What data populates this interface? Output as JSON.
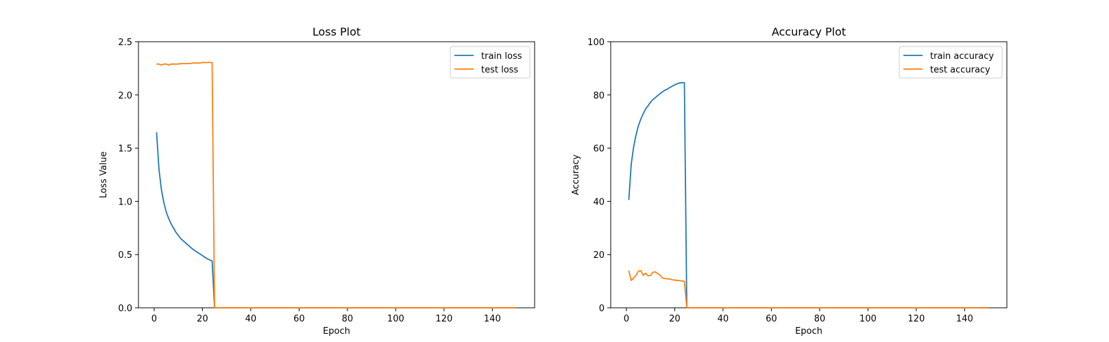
{
  "colors": {
    "series1": "#1f77b4",
    "series2": "#ff7f0e"
  },
  "chart_data": [
    {
      "type": "line",
      "title": "Loss Plot",
      "xlabel": "Epoch",
      "ylabel": "Loss Value",
      "xlim": [
        -6.5,
        157.5
      ],
      "ylim": [
        0,
        2.5
      ],
      "xticks": [
        0,
        20,
        40,
        60,
        80,
        100,
        120,
        140
      ],
      "yticks": [
        0.0,
        0.5,
        1.0,
        1.5,
        2.0,
        2.5
      ],
      "ytick_labels": [
        "0.0",
        "0.5",
        "1.0",
        "1.5",
        "2.0",
        "2.5"
      ],
      "grid": false,
      "legend": "top-right",
      "series": [
        {
          "name": "train loss",
          "points": [
            [
              1,
              1.65
            ],
            [
              2,
              1.3
            ],
            [
              3,
              1.11
            ],
            [
              4,
              0.99
            ],
            [
              5,
              0.9
            ],
            [
              6,
              0.84
            ],
            [
              7,
              0.79
            ],
            [
              8,
              0.75
            ],
            [
              9,
              0.71
            ],
            [
              10,
              0.68
            ],
            [
              11,
              0.65
            ],
            [
              12,
              0.63
            ],
            [
              13,
              0.61
            ],
            [
              14,
              0.59
            ],
            [
              15,
              0.57
            ],
            [
              16,
              0.55
            ],
            [
              17,
              0.535
            ],
            [
              18,
              0.52
            ],
            [
              19,
              0.505
            ],
            [
              20,
              0.49
            ],
            [
              21,
              0.475
            ],
            [
              22,
              0.46
            ],
            [
              23,
              0.45
            ],
            [
              24,
              0.44
            ],
            [
              25,
              0.0
            ],
            [
              150,
              0.0
            ]
          ]
        },
        {
          "name": "test loss",
          "points": [
            [
              1,
              2.29
            ],
            [
              2,
              2.29
            ],
            [
              3,
              2.28
            ],
            [
              4,
              2.29
            ],
            [
              5,
              2.29
            ],
            [
              6,
              2.28
            ],
            [
              7,
              2.29
            ],
            [
              8,
              2.29
            ],
            [
              9,
              2.29
            ],
            [
              10,
              2.29
            ],
            [
              11,
              2.295
            ],
            [
              12,
              2.295
            ],
            [
              13,
              2.295
            ],
            [
              14,
              2.295
            ],
            [
              15,
              2.295
            ],
            [
              16,
              2.3
            ],
            [
              17,
              2.3
            ],
            [
              18,
              2.3
            ],
            [
              19,
              2.3
            ],
            [
              20,
              2.305
            ],
            [
              21,
              2.305
            ],
            [
              22,
              2.305
            ],
            [
              23,
              2.305
            ],
            [
              24,
              2.305
            ],
            [
              25,
              0.0
            ],
            [
              150,
              0.0
            ]
          ]
        }
      ]
    },
    {
      "type": "line",
      "title": "Accuracy Plot",
      "xlabel": "Epoch",
      "ylabel": "Accuracy",
      "xlim": [
        -6.5,
        157.5
      ],
      "ylim": [
        0,
        100
      ],
      "xticks": [
        0,
        20,
        40,
        60,
        80,
        100,
        120,
        140
      ],
      "yticks": [
        0,
        20,
        40,
        60,
        80,
        100
      ],
      "ytick_labels": [
        "0",
        "20",
        "40",
        "60",
        "80",
        "100"
      ],
      "grid": false,
      "legend": "top-right",
      "series": [
        {
          "name": "train accuracy",
          "points": [
            [
              1,
              40.5
            ],
            [
              2,
              54.0
            ],
            [
              3,
              60.5
            ],
            [
              4,
              65.0
            ],
            [
              5,
              68.5
            ],
            [
              6,
              71.0
            ],
            [
              7,
              73.0
            ],
            [
              8,
              74.8
            ],
            [
              9,
              76.0
            ],
            [
              10,
              77.3
            ],
            [
              11,
              78.3
            ],
            [
              12,
              79.0
            ],
            [
              13,
              79.8
            ],
            [
              14,
              80.5
            ],
            [
              15,
              81.2
            ],
            [
              16,
              81.8
            ],
            [
              17,
              82.2
            ],
            [
              18,
              82.8
            ],
            [
              19,
              83.3
            ],
            [
              20,
              83.8
            ],
            [
              21,
              84.2
            ],
            [
              22,
              84.5
            ],
            [
              23,
              84.6
            ],
            [
              24,
              84.6
            ],
            [
              25,
              0.0
            ],
            [
              150,
              0.0
            ]
          ]
        },
        {
          "name": "test accuracy",
          "points": [
            [
              1,
              14.0
            ],
            [
              2,
              10.3
            ],
            [
              3,
              11.2
            ],
            [
              4,
              12.2
            ],
            [
              5,
              13.8
            ],
            [
              6,
              13.9
            ],
            [
              7,
              12.2
            ],
            [
              8,
              13.0
            ],
            [
              9,
              12.0
            ],
            [
              10,
              12.2
            ],
            [
              11,
              13.4
            ],
            [
              12,
              13.5
            ],
            [
              13,
              12.8
            ],
            [
              14,
              12.2
            ],
            [
              15,
              11.2
            ],
            [
              16,
              11.0
            ],
            [
              17,
              10.9
            ],
            [
              18,
              10.8
            ],
            [
              19,
              10.5
            ],
            [
              20,
              10.4
            ],
            [
              21,
              10.3
            ],
            [
              22,
              10.2
            ],
            [
              23,
              10.1
            ],
            [
              24,
              10.0
            ],
            [
              25,
              0.0
            ],
            [
              150,
              0.0
            ]
          ]
        }
      ]
    }
  ]
}
